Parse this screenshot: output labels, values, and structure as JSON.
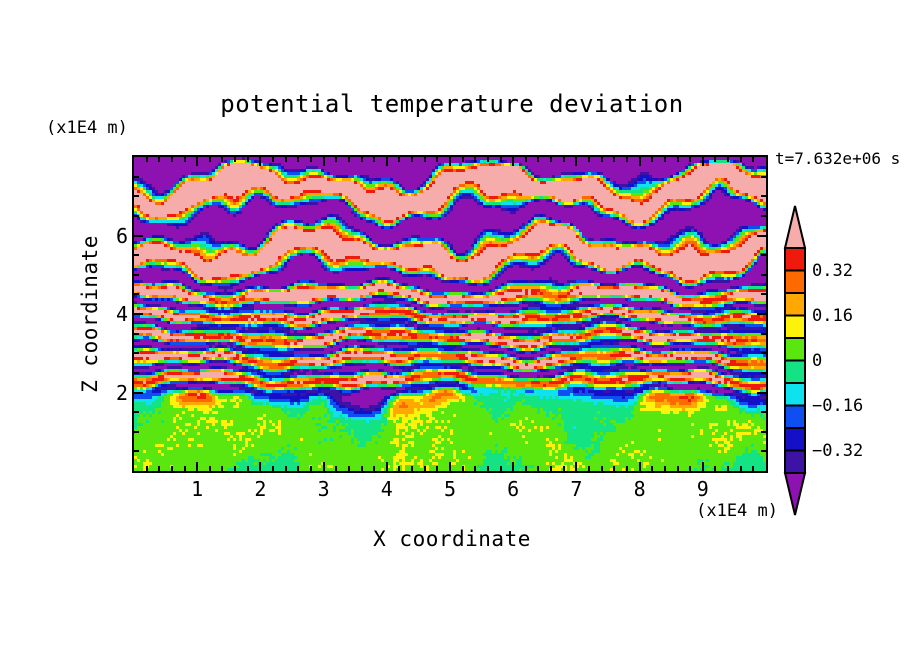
{
  "chart_data": {
    "type": "filled_contour",
    "title": "potential temperature deviation",
    "time_annotation": "t=7.632e+06 s",
    "x_axis": {
      "label": "X coordinate",
      "units": "(x1E4 m)",
      "min": 0,
      "max": 10,
      "major_ticks": [
        1,
        2,
        3,
        4,
        5,
        6,
        7,
        8,
        9
      ],
      "minor_tick_step": 0.2
    },
    "y_axis": {
      "label": "Z coordinate",
      "units": "(x1E4 m)",
      "min": 0,
      "max": 8,
      "major_ticks": [
        2,
        4,
        6
      ],
      "minor_tick_step": 0.5
    },
    "colorbar": {
      "tick_labels": [
        "0.32",
        "0.16",
        "0",
        "−0.16",
        "−0.32"
      ],
      "tick_values": [
        0.32,
        0.16,
        0,
        -0.16,
        -0.32
      ],
      "level_boundaries": [
        -0.4,
        -0.32,
        -0.24,
        -0.16,
        -0.08,
        0,
        0.08,
        0.16,
        0.24,
        0.32,
        0.4
      ],
      "colors_low_to_high": [
        "#3D13A6",
        "#1410C8",
        "#0D4FF0",
        "#0EE2EF",
        "#14E383",
        "#5AE60F",
        "#FDF20B",
        "#FFA801",
        "#FF6A00",
        "#F01A0C"
      ],
      "under_color": "#8E12B2",
      "over_color": "#F5ACAA"
    },
    "field_summary": "Horizontally layered gravity-wave field: broad saturated pink (>0.4) and purple (<-0.4) bands with thin rainbow transition fringes above z~4.5; dense thin multicolour stripes for 2<z<4.5; weak smooth field (chartreuse/spring-green blobs, |dev|<0.08) below z~2.",
    "render_params": {
      "grid_cols": 210,
      "grid_rows": 105,
      "phase_knots": [
        [
          0,
          0.25
        ],
        [
          1.8,
          0.25
        ],
        [
          2.1,
          1.85
        ],
        [
          4.3,
          1.85
        ],
        [
          5.2,
          0.62
        ],
        [
          8.5,
          0.62
        ]
      ],
      "amp_knots": [
        [
          0,
          0.055
        ],
        [
          1.55,
          0.055
        ],
        [
          2.1,
          0.42
        ],
        [
          4.2,
          0.45
        ],
        [
          5.1,
          0.8
        ],
        [
          8.5,
          0.8
        ]
      ],
      "undulation": [
        [
          1.7,
          0.85,
          1.2,
          1.15
        ],
        [
          3.3,
          -1.45,
          4.1,
          0.65
        ],
        [
          5.9,
          2.3,
          2.0,
          0.42
        ],
        [
          9.7,
          -3.1,
          0.5,
          0.25
        ]
      ],
      "amp_mod": [
        [
          2.4,
          1.1,
          2.8,
          0.22
        ],
        [
          4.9,
          -2.0,
          0.0,
          0.12
        ]
      ],
      "shear_shift": [
        [
          0.9,
          2.0,
          0.25
        ],
        [
          1.7,
          1.0,
          -0.15
        ]
      ],
      "low_z_bias": 0.012,
      "bias_zmax": 1.7,
      "noise_amp": 0.028,
      "top_damp_z": 7.75,
      "top_damp_min": 0.3
    },
    "frame_color": "#000000",
    "text_color": "#000000",
    "background_color": "#ffffff"
  }
}
